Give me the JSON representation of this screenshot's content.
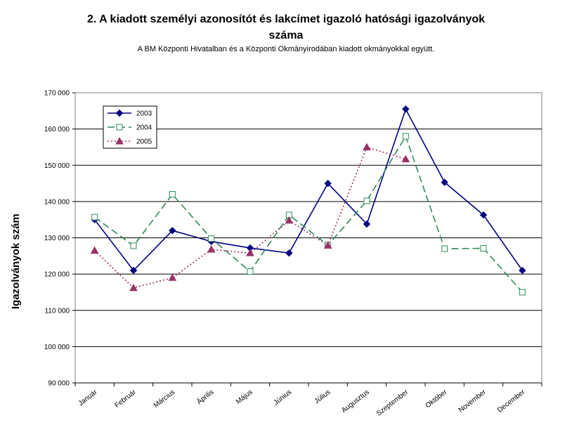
{
  "chart_data": {
    "type": "line",
    "title_line1": "2. A kiadott személyi azonosítót és lakcímet igazoló hatósági igazolványok",
    "title_line2": "száma",
    "subtitle": "A BM Központi Hivatalban és a Központi Okmányirodában kiadott okmányokkal együtt.",
    "ylabel": "Igazolványok szám",
    "xlabel": "",
    "ylim": [
      90000,
      170000
    ],
    "yticks": [
      "90 000",
      "100 000",
      "110 000",
      "120 000",
      "130 000",
      "140 000",
      "150 000",
      "160 000",
      "170 000"
    ],
    "ytick_values": [
      90000,
      100000,
      110000,
      120000,
      130000,
      140000,
      150000,
      160000,
      170000
    ],
    "categories": [
      "Január",
      "Február",
      "Március",
      "Április",
      "Május",
      "Június",
      "Július",
      "Augusztus",
      "Szeptember",
      "Október",
      "November",
      "December"
    ],
    "grid": "horizontal",
    "legend_position": "top-left",
    "series": [
      {
        "name": "2003",
        "color": "#000080",
        "style": "solid",
        "marker": "diamond",
        "values": [
          135000,
          121000,
          132000,
          129000,
          127200,
          125800,
          145000,
          133800,
          165500,
          145300,
          136300,
          121000
        ]
      },
      {
        "name": "2004",
        "color": "#2e8b57",
        "style": "dashed",
        "marker": "open-square",
        "values": [
          135700,
          127800,
          142000,
          129800,
          120700,
          136300,
          128000,
          140200,
          158000,
          127000,
          127100,
          115000
        ]
      },
      {
        "name": "2005",
        "color": "#993366",
        "style": "dotted",
        "marker": "triangle",
        "values": [
          126500,
          116200,
          119000,
          126800,
          125800,
          134800,
          127900,
          155000,
          151700,
          null,
          null,
          null
        ]
      }
    ]
  }
}
